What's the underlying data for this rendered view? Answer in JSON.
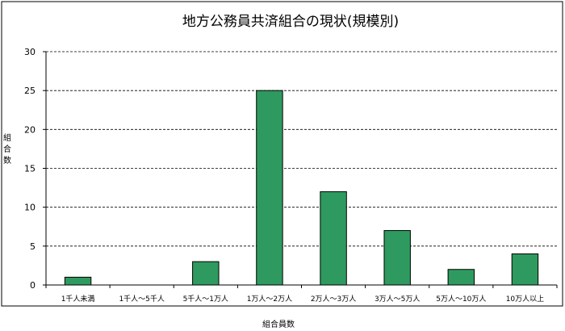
{
  "chart_data": {
    "type": "bar",
    "title": "地方公務員共済組合の現状(規模別)",
    "xlabel": "組合員数",
    "ylabel": "組合数",
    "categories": [
      "1千人未満",
      "1千人〜5千人",
      "5千人〜1万人",
      "1万人〜2万人",
      "2万人〜3万人",
      "3万人〜5万人",
      "5万人〜10万人",
      "10万人以上"
    ],
    "values": [
      1,
      0,
      3,
      25,
      12,
      7,
      2,
      4
    ],
    "ylim": [
      0,
      30
    ],
    "yticks": [
      0,
      5,
      10,
      15,
      20,
      25,
      30
    ],
    "grid": true,
    "legend": "none",
    "colors": {
      "bar": "#2e9a5f",
      "bar_border": "#000000",
      "grid": "#000000"
    }
  }
}
